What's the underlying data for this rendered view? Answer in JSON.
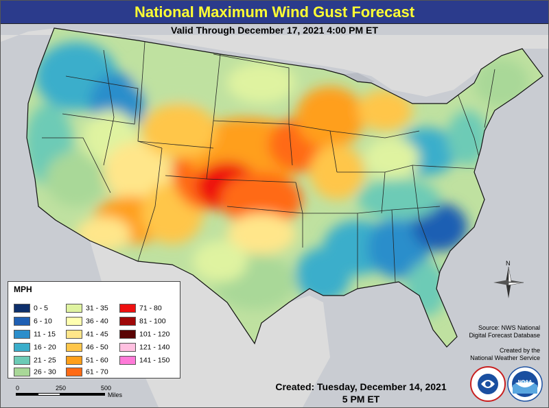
{
  "header": {
    "title": "National Maximum Wind Gust Forecast",
    "valid": "Valid Through December 17, 2021 4:00 PM ET"
  },
  "legend": {
    "title": "MPH",
    "items": [
      {
        "label": "0 - 5",
        "color": "#0d2f6b"
      },
      {
        "label": "6 - 10",
        "color": "#1f5fb3"
      },
      {
        "label": "11 - 15",
        "color": "#2b8ecb"
      },
      {
        "label": "16 - 20",
        "color": "#3aaecb"
      },
      {
        "label": "21 - 25",
        "color": "#6dcbb6"
      },
      {
        "label": "26 - 30",
        "color": "#a9d898"
      },
      {
        "label": "31 - 35",
        "color": "#dff3a0"
      },
      {
        "label": "36 - 40",
        "color": "#ffffb0"
      },
      {
        "label": "41 - 45",
        "color": "#ffe68a"
      },
      {
        "label": "46 - 50",
        "color": "#ffc64a"
      },
      {
        "label": "51 - 60",
        "color": "#ff9f1a"
      },
      {
        "label": "61 - 70",
        "color": "#ff6a14"
      },
      {
        "label": "71 - 80",
        "color": "#ee1010"
      },
      {
        "label": "81 - 100",
        "color": "#a00808"
      },
      {
        "label": "101 - 120",
        "color": "#5a0404"
      },
      {
        "label": "121 - 140",
        "color": "#ffc0e0"
      },
      {
        "label": "141 - 150",
        "color": "#ff7ad8"
      }
    ]
  },
  "scale": {
    "labels": [
      "0",
      "250",
      "500"
    ],
    "unit": "Miles"
  },
  "source": {
    "line1": "Source: NWS National",
    "line2": "Digital Forecast Database"
  },
  "credit": {
    "line1": "Created by the",
    "line2": "National Weather Service"
  },
  "created": {
    "line1": "Created: Tuesday, December 14, 2021",
    "line2": "5 PM ET"
  },
  "compass": {
    "label": "N"
  },
  "logos": {
    "nws": "NATIONAL WEATHER SERVICE",
    "noaa": "NOAA"
  },
  "colors": {
    "title_bg": "#2b3b8c",
    "title_text": "#ffff33",
    "ocean": "#c9ccd2",
    "land_outside": "#d8d8d8"
  }
}
